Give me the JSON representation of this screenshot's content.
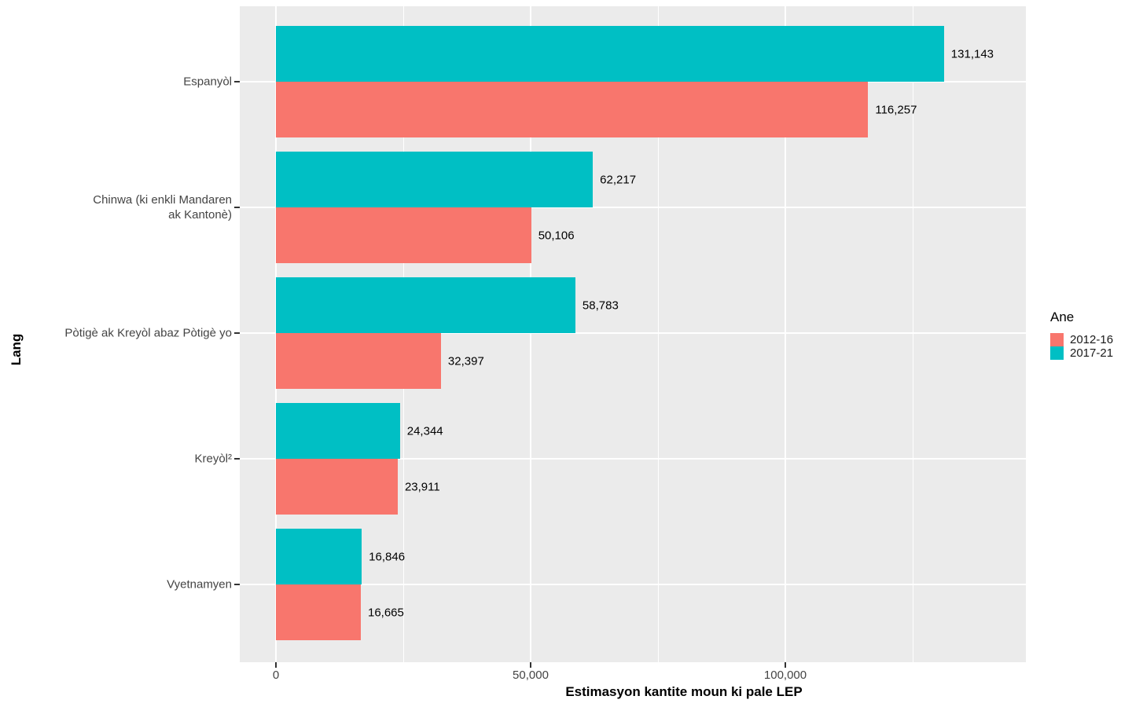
{
  "chart_data": {
    "type": "bar",
    "orientation": "horizontal",
    "title": "",
    "xlabel": "Estimasyon kantite moun ki pale LEP",
    "ylabel": "Lang",
    "categories": [
      "Espanyòl",
      "Chinwa (ki enkli Mandaren\nak Kantonè)",
      "Pòtigè ak Kreyòl abaz Pòtigè yo",
      "Kreyòl²",
      "Vyetnamyen"
    ],
    "series": [
      {
        "name": "2012-16",
        "color": "#F8766D",
        "values": [
          116257,
          50106,
          32397,
          23911,
          16665
        ],
        "value_labels": [
          "116,257",
          "50,106",
          "32,397",
          "23,911",
          "16,665"
        ]
      },
      {
        "name": "2017-21",
        "color": "#00BFC4",
        "values": [
          131143,
          62217,
          58783,
          24344,
          16846
        ],
        "value_labels": [
          "131,143",
          "62,217",
          "58,783",
          "24,344",
          "16,846"
        ]
      }
    ],
    "xlim": [
      -7099,
      147222
    ],
    "x_ticks": [
      {
        "value": 0,
        "label": "0"
      },
      {
        "value": 50000,
        "label": "50,000"
      },
      {
        "value": 100000,
        "label": "100,000"
      }
    ],
    "x_minor_ticks": [
      25000,
      75000,
      125000
    ],
    "legend": {
      "title": "Ane",
      "position": "right"
    },
    "layout_hints": {
      "grid": "on",
      "panel_background": "#EBEBEB",
      "gridline_color": "#FFFFFF",
      "axis_text_color": "#444444",
      "tick_mark_color": "#333333",
      "bar_group_order_top_to_bottom": [
        "2017-21",
        "2012-16"
      ]
    }
  }
}
